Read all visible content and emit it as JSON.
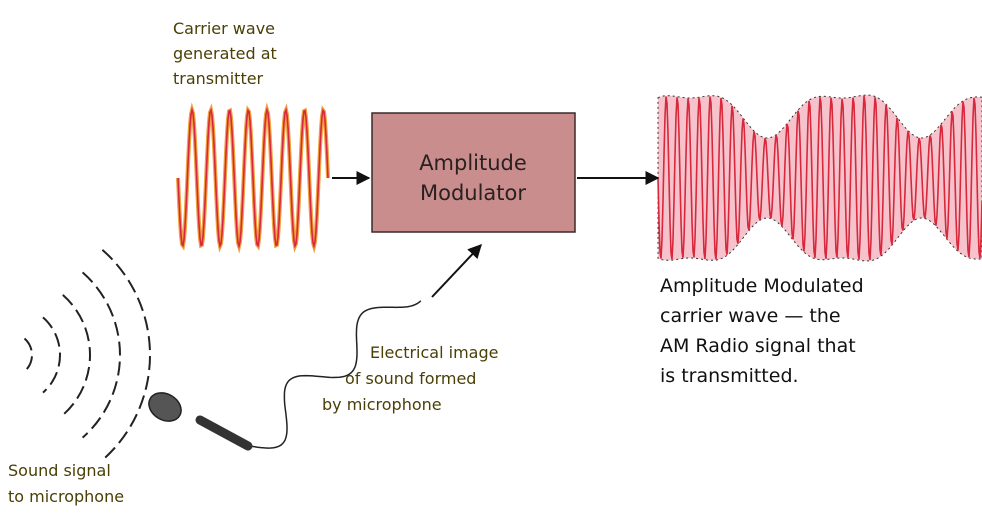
{
  "carrier": {
    "label": [
      "Carrier wave",
      "generated at",
      "transmitter"
    ]
  },
  "modulator": {
    "label": [
      "Amplitude",
      "Modulator"
    ]
  },
  "output": {
    "label": [
      "Amplitude Modulated",
      "carrier wave — the",
      "AM Radio signal that",
      "is transmitted."
    ]
  },
  "electrical": {
    "label": [
      "Electrical image",
      "of sound formed",
      "by microphone"
    ]
  },
  "sound": {
    "label": [
      "Sound signal",
      "to microphone"
    ]
  }
}
